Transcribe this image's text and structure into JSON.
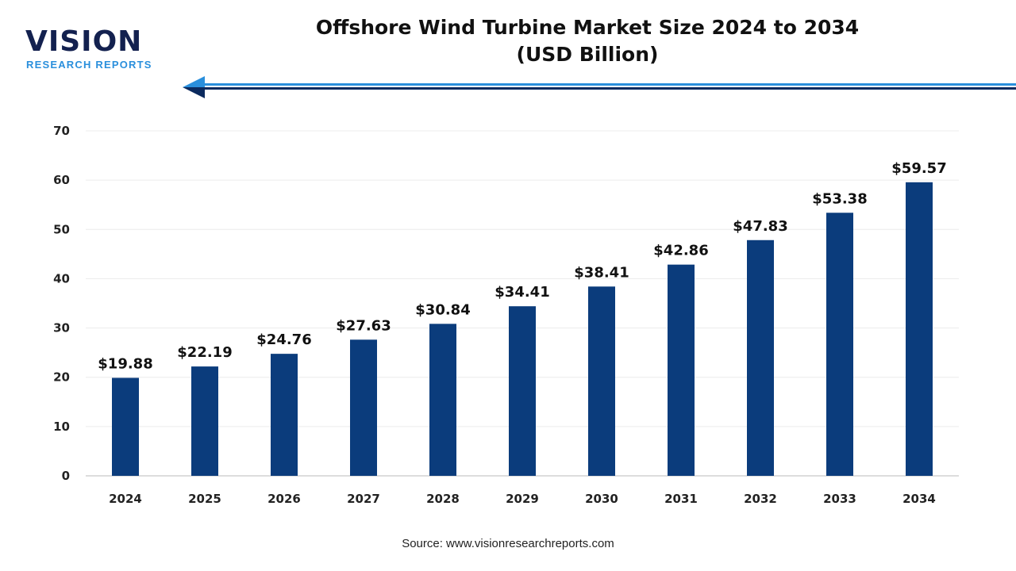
{
  "logo": {
    "word": "VISION",
    "sub": "RESEARCH REPORTS"
  },
  "colors": {
    "bar": "#0b3c7c",
    "accent_blue": "#2a8fdc",
    "navy": "#0b2a5e"
  },
  "source": "Source: www.visionresearchreports.com",
  "chart_data": {
    "type": "bar",
    "title": "Offshore Wind Turbine Market Size 2024 to 2034",
    "subtitle": "(USD Billion)",
    "categories": [
      "2024",
      "2025",
      "2026",
      "2027",
      "2028",
      "2029",
      "2030",
      "2031",
      "2032",
      "2033",
      "2034"
    ],
    "values": [
      19.88,
      22.19,
      24.76,
      27.63,
      30.84,
      34.41,
      38.41,
      42.86,
      47.83,
      53.38,
      59.57
    ],
    "data_labels": [
      "$19.88",
      "$22.19",
      "$24.76",
      "$27.63",
      "$30.84",
      "$34.41",
      "$38.41",
      "$42.86",
      "$47.83",
      "$53.38",
      "$59.57"
    ],
    "yticks": [
      0,
      10,
      20,
      30,
      40,
      50,
      60,
      70
    ],
    "ylim": [
      0,
      70
    ],
    "xlabel": "",
    "ylabel": "",
    "grid": true,
    "legend": "none"
  }
}
